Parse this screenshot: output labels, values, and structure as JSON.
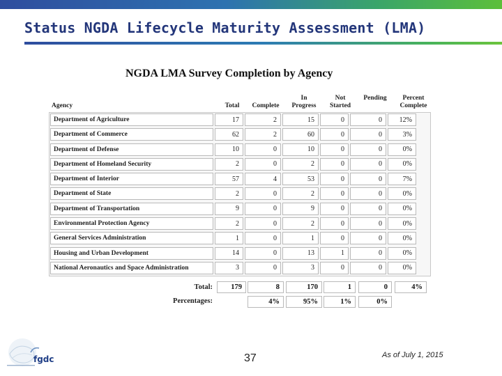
{
  "slide": {
    "title": "Status NGDA Lifecycle Maturity Assessment (LMA)",
    "page_number": "37",
    "as_of": "As of July 1, 2015",
    "logo_text": "fgdc"
  },
  "table": {
    "title": "NGDA LMA Survey Completion by Agency",
    "headers": {
      "agency": "Agency",
      "total": "Total",
      "complete": "Complete",
      "in_progress": "In\nProgress",
      "not_started": "Not\nStarted",
      "pending": "Pending",
      "percent_complete": "Percent\nComplete"
    },
    "rows": [
      {
        "agency": "Department of Agriculture",
        "total": "17",
        "complete": "2",
        "in_progress": "15",
        "not_started": "0",
        "pending": "0",
        "percent_complete": "12%"
      },
      {
        "agency": "Department of Commerce",
        "total": "62",
        "complete": "2",
        "in_progress": "60",
        "not_started": "0",
        "pending": "0",
        "percent_complete": "3%"
      },
      {
        "agency": "Department of Defense",
        "total": "10",
        "complete": "0",
        "in_progress": "10",
        "not_started": "0",
        "pending": "0",
        "percent_complete": "0%"
      },
      {
        "agency": "Department of Homeland Security",
        "total": "2",
        "complete": "0",
        "in_progress": "2",
        "not_started": "0",
        "pending": "0",
        "percent_complete": "0%"
      },
      {
        "agency": "Department of Interior",
        "total": "57",
        "complete": "4",
        "in_progress": "53",
        "not_started": "0",
        "pending": "0",
        "percent_complete": "7%"
      },
      {
        "agency": "Department of State",
        "total": "2",
        "complete": "0",
        "in_progress": "2",
        "not_started": "0",
        "pending": "0",
        "percent_complete": "0%"
      },
      {
        "agency": "Department of Transportation",
        "total": "9",
        "complete": "0",
        "in_progress": "9",
        "not_started": "0",
        "pending": "0",
        "percent_complete": "0%"
      },
      {
        "agency": "Environmental Protection Agency",
        "total": "2",
        "complete": "0",
        "in_progress": "2",
        "not_started": "0",
        "pending": "0",
        "percent_complete": "0%"
      },
      {
        "agency": "General Services Administration",
        "total": "1",
        "complete": "0",
        "in_progress": "1",
        "not_started": "0",
        "pending": "0",
        "percent_complete": "0%"
      },
      {
        "agency": "Housing and Urban Development",
        "total": "14",
        "complete": "0",
        "in_progress": "13",
        "not_started": "1",
        "pending": "0",
        "percent_complete": "0%"
      },
      {
        "agency": "National Aeronautics and Space Administration",
        "total": "3",
        "complete": "0",
        "in_progress": "3",
        "not_started": "0",
        "pending": "0",
        "percent_complete": "0%"
      }
    ],
    "totals": {
      "label": "Total:",
      "total": "179",
      "complete": "8",
      "in_progress": "170",
      "not_started": "1",
      "pending": "0",
      "percent_complete": "4%"
    },
    "percentages": {
      "label": "Percentages:",
      "complete": "4%",
      "in_progress": "95%",
      "not_started": "1%",
      "pending": "0%"
    }
  },
  "colors": {
    "title": "#23367a",
    "bar_start": "#2e4d9e",
    "bar_end": "#5cbf3a"
  }
}
